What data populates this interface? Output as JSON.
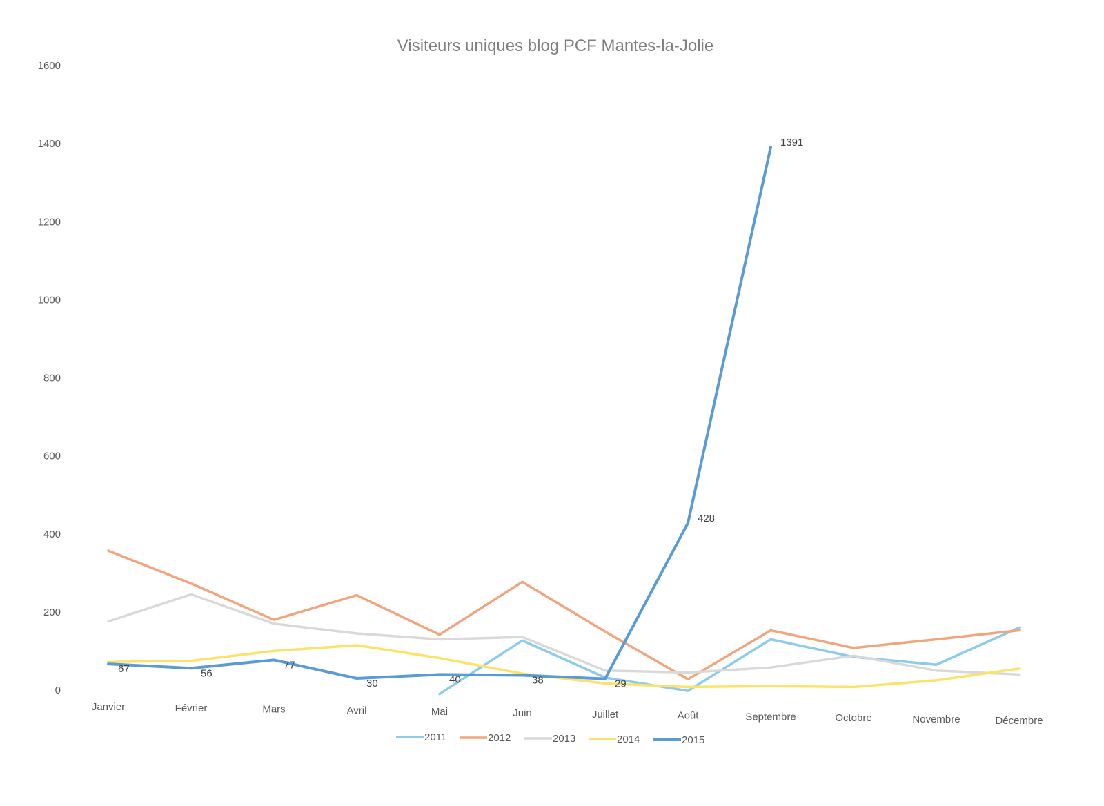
{
  "chart_data": {
    "type": "line",
    "title": "Visiteurs uniques blog PCF Mantes-la-Jolie",
    "xlabel": "",
    "ylabel": "",
    "categories": [
      "Janvier",
      "Février",
      "Mars",
      "Avril",
      "Mai",
      "Juin",
      "Juillet",
      "Août",
      "Septembre",
      "Octobre",
      "Novembre",
      "Décembre"
    ],
    "ylim": [
      0,
      1600
    ],
    "yticks": [
      "0",
      "200",
      "400",
      "600",
      "800",
      "1000",
      "1200",
      "1400",
      "1600"
    ],
    "grid": false,
    "legend": "bottom",
    "series": [
      {
        "name": "2011",
        "color": "#8ccbea",
        "values": [
          null,
          null,
          null,
          null,
          -10,
          127,
          32,
          -2,
          130,
          85,
          65,
          160
        ]
      },
      {
        "name": "2012",
        "color": "#f0a57c",
        "values": [
          357,
          273,
          180,
          243,
          142,
          277,
          150,
          28,
          153,
          108,
          130,
          153
        ]
      },
      {
        "name": "2013",
        "color": "#d9d9d9",
        "values": [
          176,
          245,
          170,
          145,
          130,
          136,
          50,
          45,
          58,
          88,
          50,
          40
        ]
      },
      {
        "name": "2014",
        "color": "#fbe36a",
        "values": [
          72,
          75,
          100,
          115,
          82,
          42,
          17,
          8,
          10,
          8,
          25,
          55
        ]
      },
      {
        "name": "2015",
        "color": "#5b9bd5",
        "values": [
          67,
          56,
          77,
          30,
          40,
          38,
          29,
          428,
          1391,
          null,
          null,
          null
        ]
      }
    ],
    "data_labels": [
      {
        "series": "2015",
        "index": 0,
        "text": "67"
      },
      {
        "series": "2015",
        "index": 1,
        "text": "56"
      },
      {
        "series": "2015",
        "index": 2,
        "text": "77"
      },
      {
        "series": "2015",
        "index": 3,
        "text": "30"
      },
      {
        "series": "2015",
        "index": 4,
        "text": "40"
      },
      {
        "series": "2015",
        "index": 5,
        "text": "38"
      },
      {
        "series": "2015",
        "index": 6,
        "text": "29"
      },
      {
        "series": "2015",
        "index": 7,
        "text": "428"
      },
      {
        "series": "2015",
        "index": 8,
        "text": "1391"
      }
    ]
  }
}
